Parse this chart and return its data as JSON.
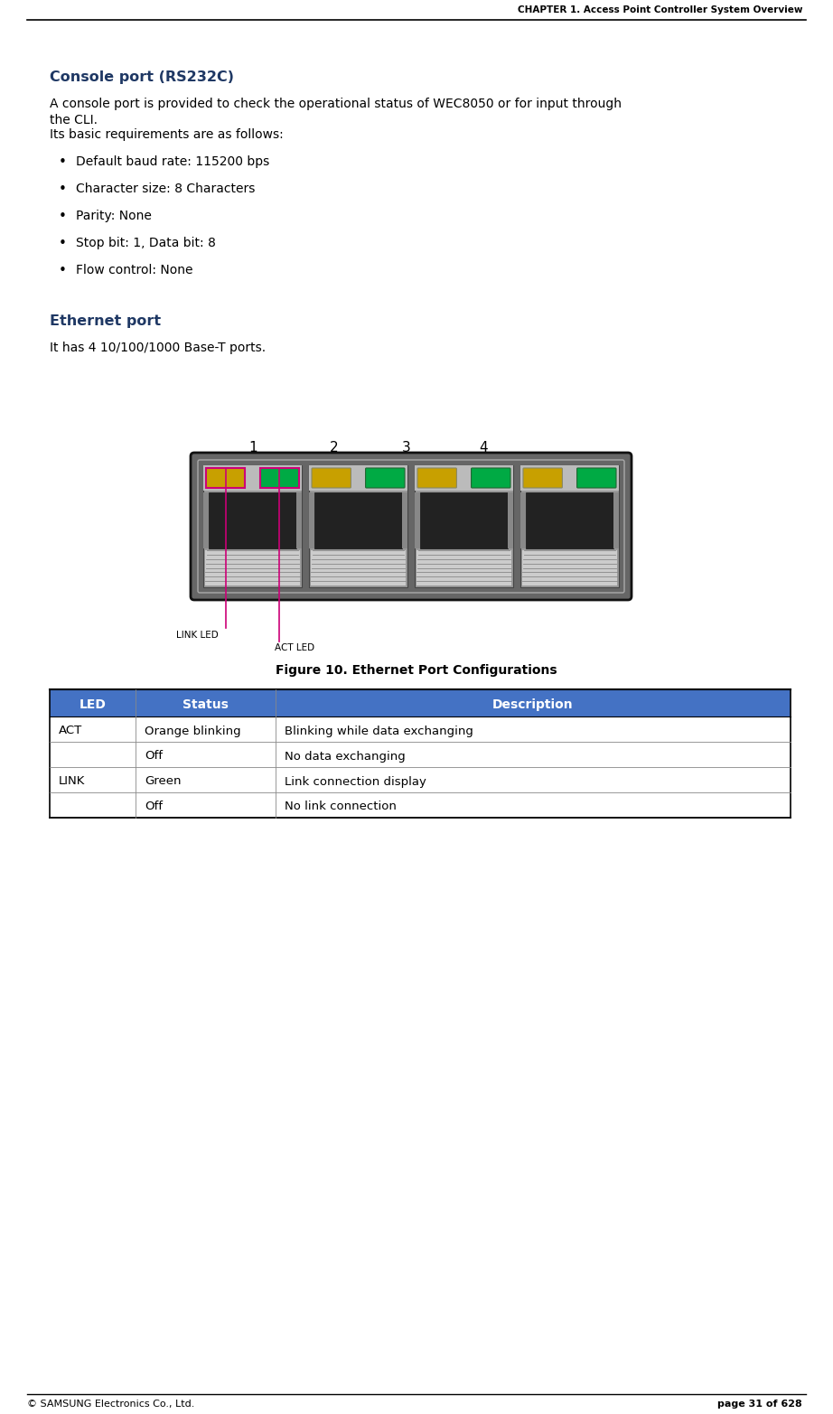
{
  "header_text": "CHAPTER 1. Access Point Controller System Overview",
  "footer_left": "© SAMSUNG Electronics Co., Ltd.",
  "footer_right": "page 31 of 628",
  "section1_title": "Console port (RS232C)",
  "body_line1": "A console port is provided to check the operational status of WEC8050 or for input through",
  "body_line2": "the CLI.",
  "body_line3": "Its basic requirements are as follows:",
  "bullets": [
    "Default baud rate: 115200 bps",
    "Character size: 8 Characters",
    "Parity: None",
    "Stop bit: 1, Data bit: 8",
    "Flow control: None"
  ],
  "section2_title": "Ethernet port",
  "section2_body": "It has 4 10/100/1000 Base-T ports.",
  "figure_caption": "Figure 10. Ethernet Port Configurations",
  "table_headers": [
    "LED",
    "Status",
    "Description"
  ],
  "table_rows": [
    [
      "ACT",
      "Orange blinking",
      "Blinking while data exchanging"
    ],
    [
      "",
      "Off",
      "No data exchanging"
    ],
    [
      "LINK",
      "Green",
      "Link connection display"
    ],
    [
      "",
      "Off",
      "No link connection"
    ]
  ],
  "header_color": "#000000",
  "section_title_color": "#1F3864",
  "body_color": "#000000",
  "table_header_bg": "#4472C4",
  "table_header_fg": "#FFFFFF",
  "bg_color": "#FFFFFF",
  "port_outer_bg": "#555555",
  "port_outer_border": "#222222",
  "port_socket_bg": "#888888",
  "port_hole_bg": "#2a2a2a",
  "led_yellow": "#C8A000",
  "led_green": "#00AA44",
  "led_pink_border": "#CC0077",
  "label_line_color": "#CC0077"
}
